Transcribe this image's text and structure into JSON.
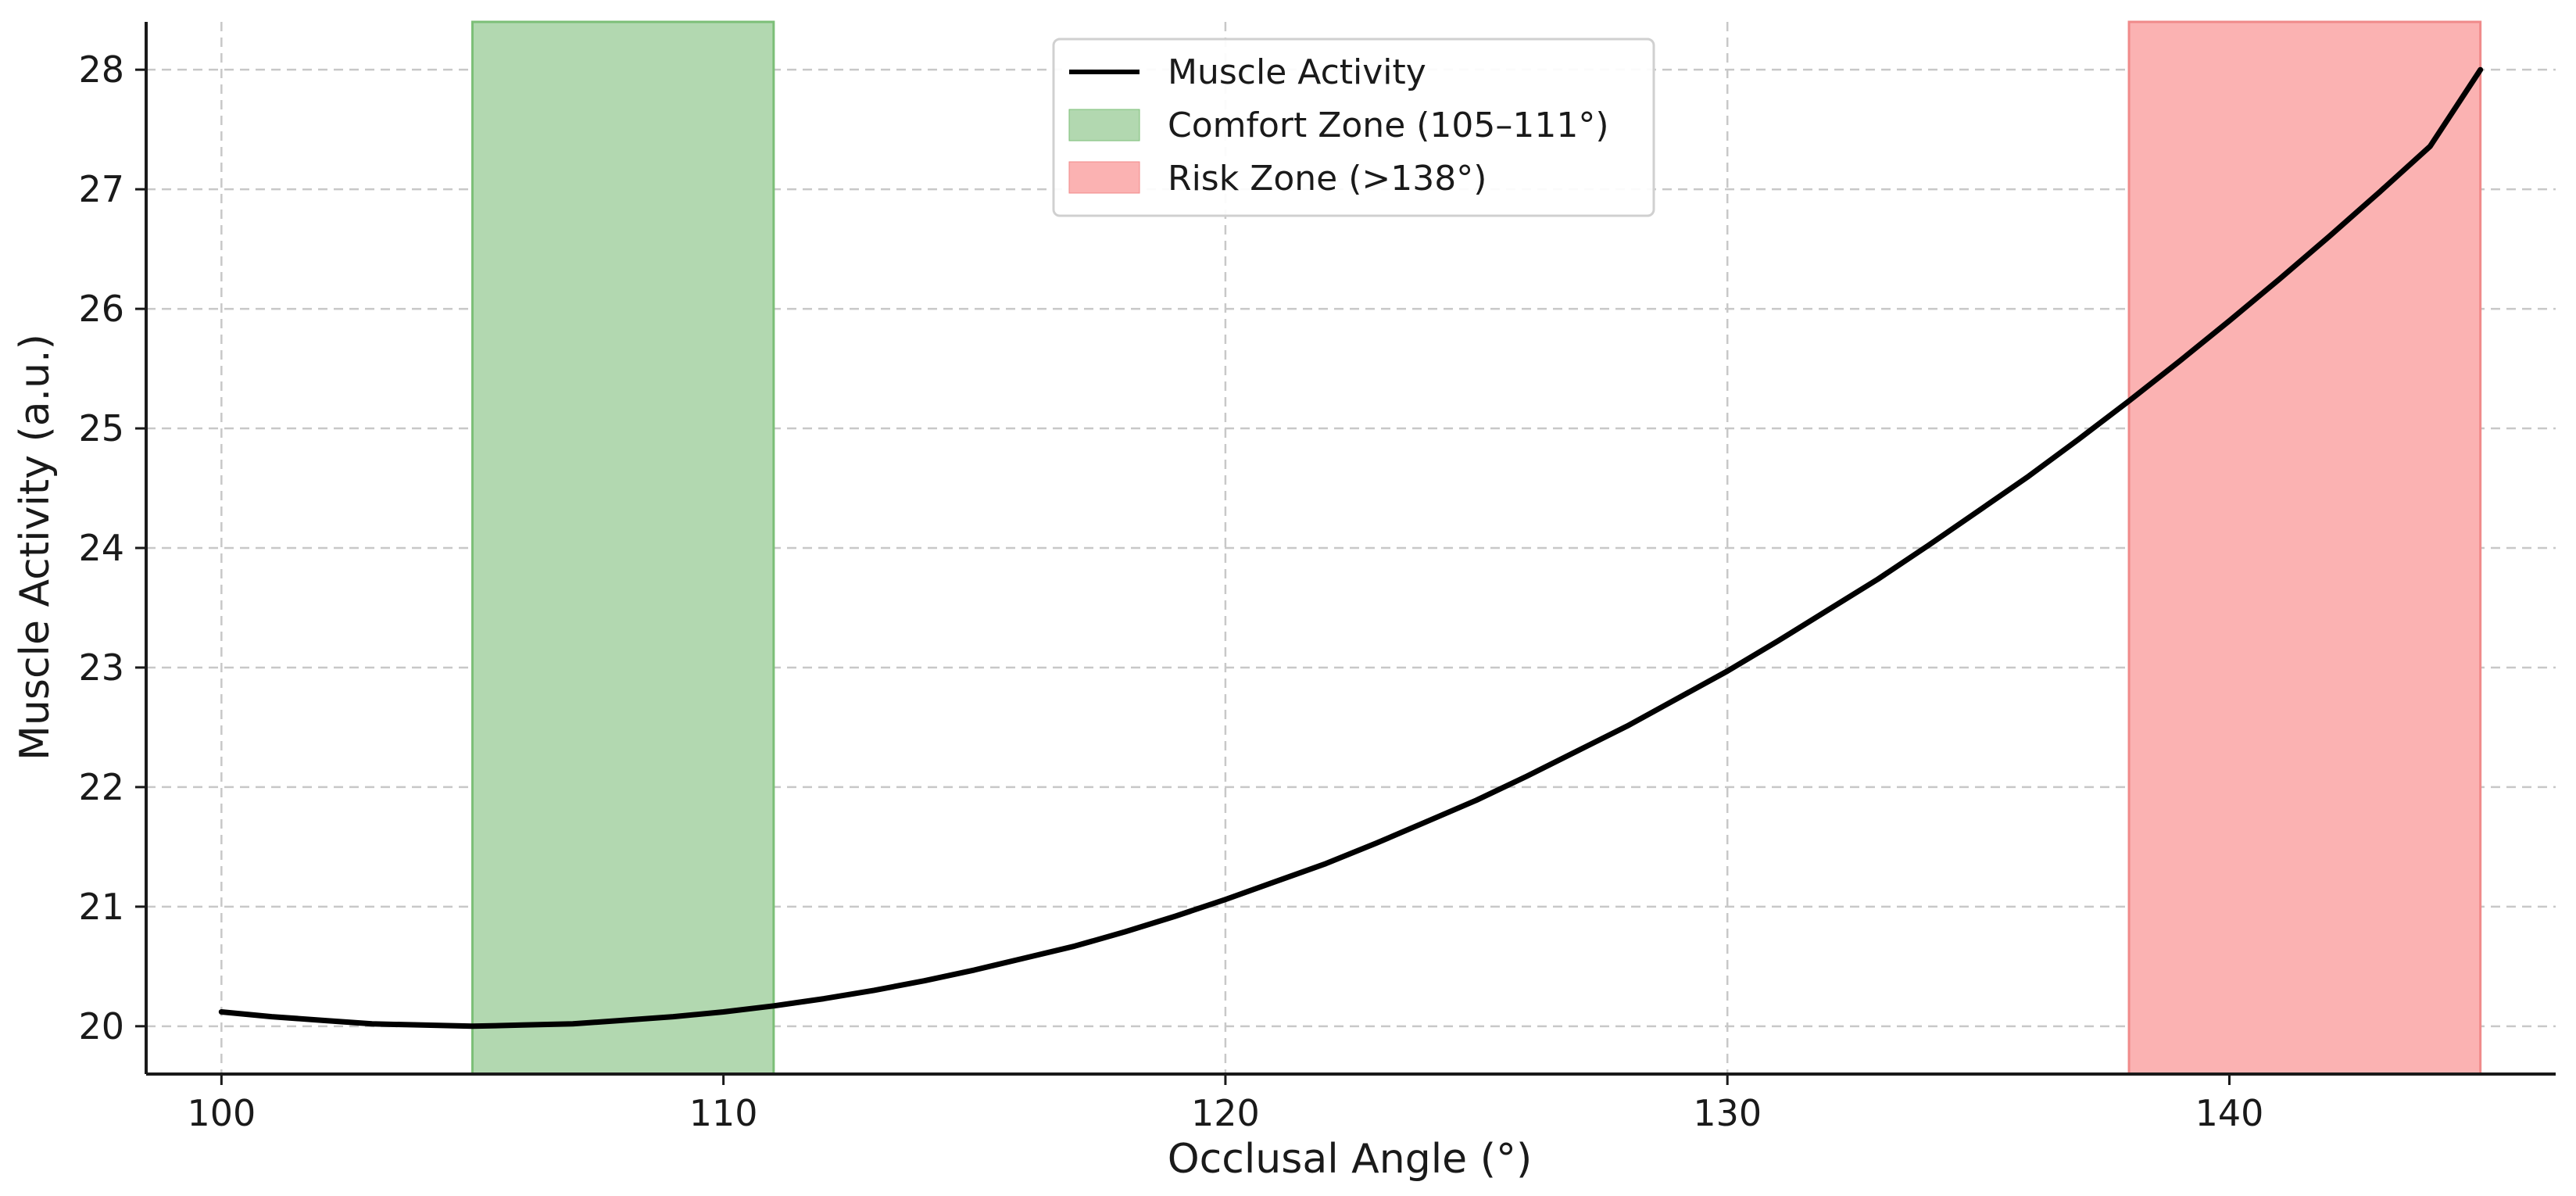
{
  "chart_data": {
    "type": "line",
    "title": "",
    "xlabel": "Occlusal Angle (°)",
    "ylabel": "Muscle Activity (a.u.)",
    "xlim": [
      98.5,
      146.5
    ],
    "ylim": [
      19.6,
      28.4
    ],
    "x_ticks": [
      100,
      110,
      120,
      130,
      140
    ],
    "y_ticks": [
      20,
      21,
      22,
      23,
      24,
      25,
      26,
      27,
      28
    ],
    "grid": true,
    "legend_position": "top-center",
    "series": [
      {
        "name": "Muscle Activity",
        "color": "#000000",
        "x": [
          100,
          101,
          102,
          103,
          104,
          105,
          106,
          107,
          108,
          109,
          110,
          111,
          112,
          113,
          114,
          115,
          116,
          117,
          118,
          119,
          120,
          121,
          122,
          123,
          124,
          125,
          126,
          127,
          128,
          129,
          130,
          131,
          132,
          133,
          134,
          135,
          136,
          137,
          138,
          139,
          140,
          141,
          142,
          143,
          144,
          145
        ],
        "y": [
          20.12,
          20.08,
          20.05,
          20.02,
          20.01,
          20.0,
          20.01,
          20.02,
          20.05,
          20.08,
          20.12,
          20.17,
          20.23,
          20.3,
          20.38,
          20.47,
          20.57,
          20.67,
          20.79,
          20.92,
          21.06,
          21.21,
          21.36,
          21.53,
          21.71,
          21.89,
          22.09,
          22.3,
          22.51,
          22.74,
          22.97,
          23.22,
          23.48,
          23.74,
          24.02,
          24.31,
          24.6,
          24.91,
          25.23,
          25.56,
          25.9,
          26.25,
          26.61,
          26.98,
          27.36,
          28.0
        ]
      }
    ],
    "zones": [
      {
        "name": "Comfort Zone (105–111°)",
        "x_start": 105,
        "x_end": 111,
        "color": "#b2d8b0",
        "edge": "#7cbf77"
      },
      {
        "name": "Risk Zone (>138°)",
        "x_start": 138,
        "x_end": 145,
        "color": "#fbb2b2",
        "edge": "#f08a8a"
      }
    ]
  }
}
